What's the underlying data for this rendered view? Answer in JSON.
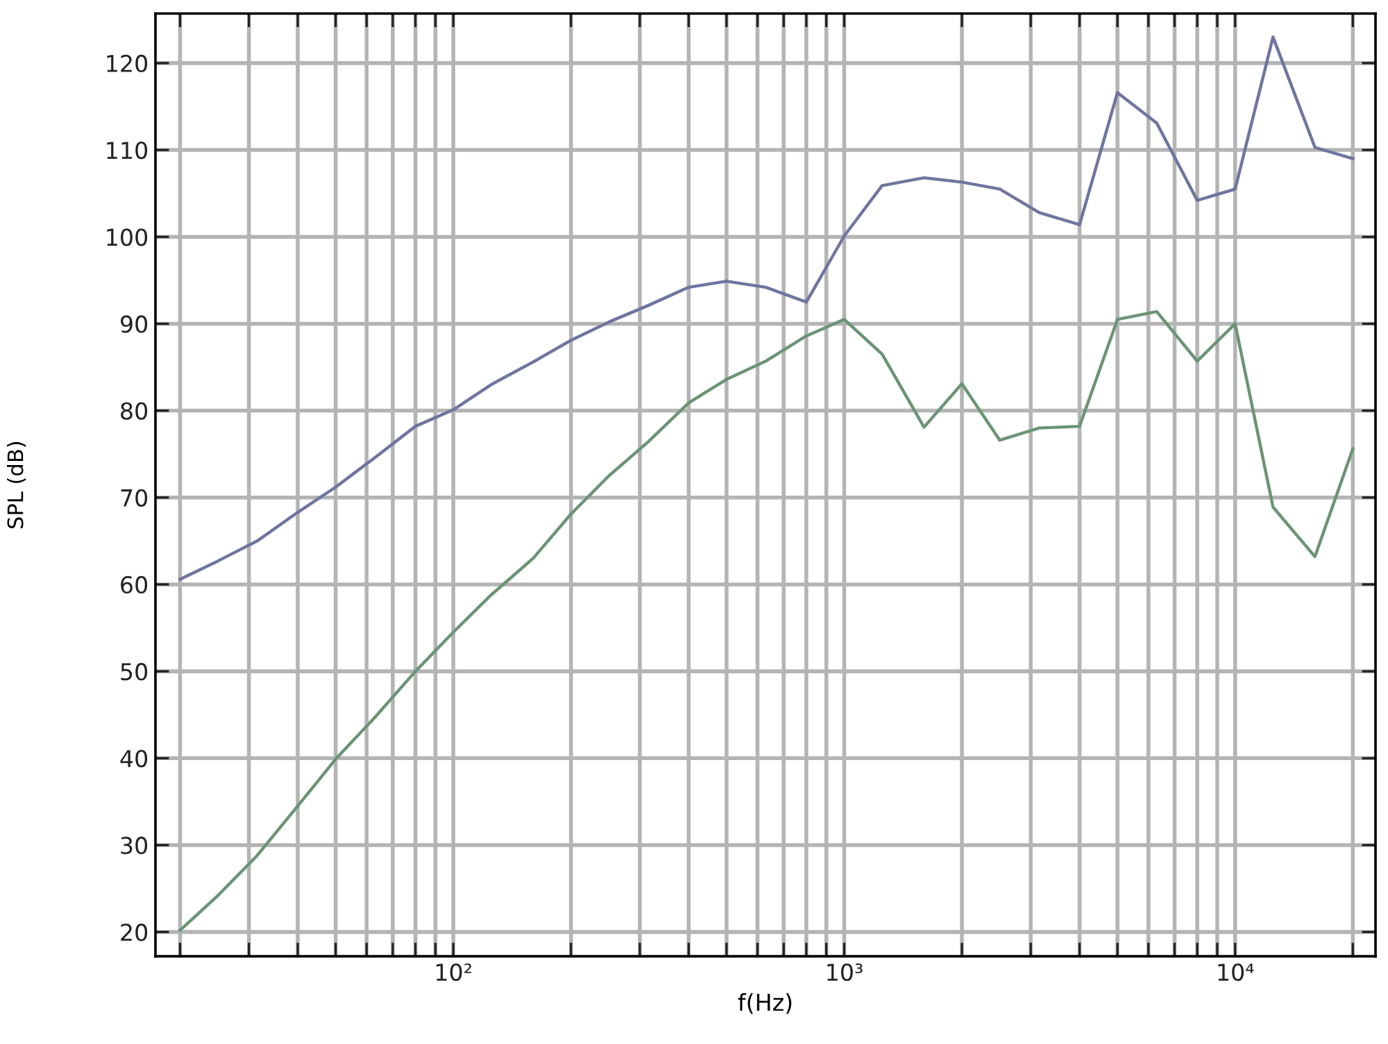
{
  "chart_data": {
    "type": "line",
    "xlabel": "f(Hz)",
    "ylabel": "SPL (dB)",
    "log": "x",
    "grid": true,
    "x": [
      20,
      25,
      31.5,
      40,
      50,
      63,
      80,
      100,
      125,
      160,
      200,
      250,
      315,
      400,
      500,
      630,
      800,
      1000,
      1250,
      1600,
      2000,
      2500,
      3150,
      4000,
      5000,
      6300,
      8000,
      10000,
      12500,
      16000,
      20000
    ],
    "series": [
      {
        "color": "#6e75a0",
        "values": [
          60.6,
          62.7,
          65.0,
          68.3,
          71.2,
          74.6,
          78.2,
          80.1,
          83.0,
          85.6,
          88.1,
          90.2,
          92.1,
          94.2,
          94.9,
          94.2,
          92.5,
          100.1,
          105.9,
          106.8,
          106.3,
          105.5,
          102.8,
          101.4,
          116.6,
          113.1,
          104.2,
          105.5,
          123.0,
          110.3,
          109.0
        ]
      },
      {
        "color": "#6b9474",
        "values": [
          20.2,
          24.2,
          28.8,
          34.5,
          39.9,
          44.7,
          50.0,
          54.5,
          58.8,
          63.0,
          68.1,
          72.5,
          76.4,
          80.9,
          83.6,
          85.7,
          88.6,
          90.5,
          86.5,
          78.1,
          83.1,
          76.6,
          78.0,
          78.2,
          90.5,
          91.4,
          85.7,
          90.0,
          68.9,
          63.2,
          75.6
        ]
      }
    ],
    "xlim": [
      17.3,
      22860
    ],
    "ylim": [
      17.2,
      125.7
    ],
    "xticks": [
      {
        "value": 20,
        "label": null
      },
      {
        "value": 30,
        "label": null
      },
      {
        "value": 40,
        "label": null
      },
      {
        "value": 50,
        "label": null
      },
      {
        "value": 60,
        "label": null
      },
      {
        "value": 70,
        "label": null
      },
      {
        "value": 80,
        "label": null
      },
      {
        "value": 90,
        "label": null
      },
      {
        "value": 100,
        "label": "10²"
      },
      {
        "value": 200,
        "label": null
      },
      {
        "value": 300,
        "label": null
      },
      {
        "value": 400,
        "label": null
      },
      {
        "value": 500,
        "label": null
      },
      {
        "value": 600,
        "label": null
      },
      {
        "value": 700,
        "label": null
      },
      {
        "value": 800,
        "label": null
      },
      {
        "value": 900,
        "label": null
      },
      {
        "value": 1000,
        "label": "10³"
      },
      {
        "value": 2000,
        "label": null
      },
      {
        "value": 3000,
        "label": null
      },
      {
        "value": 4000,
        "label": null
      },
      {
        "value": 5000,
        "label": null
      },
      {
        "value": 6000,
        "label": null
      },
      {
        "value": 7000,
        "label": null
      },
      {
        "value": 8000,
        "label": null
      },
      {
        "value": 9000,
        "label": null
      },
      {
        "value": 10000,
        "label": "10⁴"
      },
      {
        "value": 20000,
        "label": null
      }
    ],
    "yticks": [
      20,
      30,
      40,
      50,
      60,
      70,
      80,
      90,
      100,
      110,
      120
    ],
    "marker": "none",
    "line_style": "solid"
  }
}
